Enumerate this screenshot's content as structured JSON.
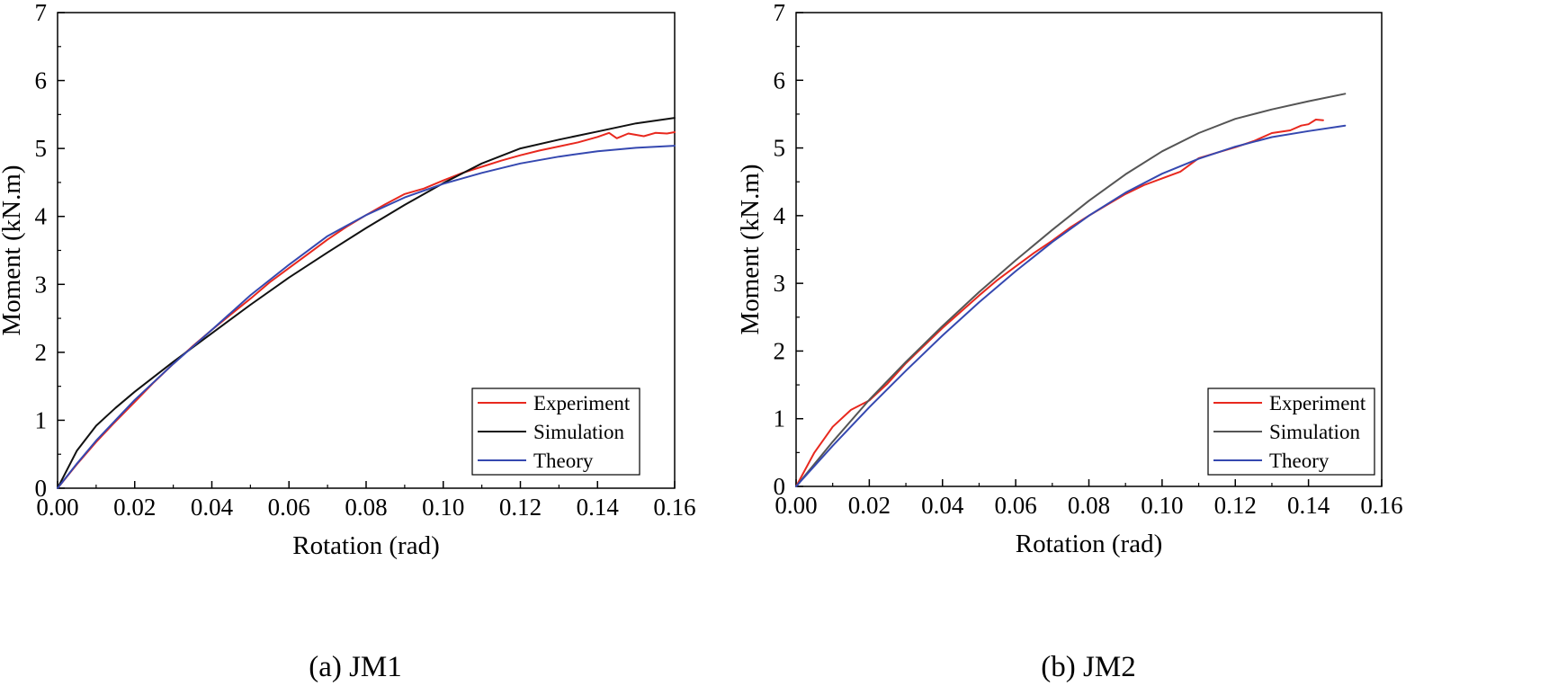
{
  "chart_data": [
    {
      "type": "line",
      "caption": "(a) JM1",
      "xlabel": "Rotation (rad)",
      "ylabel": "Moment (kN.m)",
      "xlim": [
        0,
        0.16
      ],
      "ylim": [
        0,
        7
      ],
      "xticks": [
        "0.00",
        "0.02",
        "0.04",
        "0.06",
        "0.08",
        "0.10",
        "0.12",
        "0.14",
        "0.16"
      ],
      "yticks": [
        "0",
        "1",
        "2",
        "3",
        "4",
        "5",
        "6",
        "7"
      ],
      "legend_position": "bottom-right",
      "series": [
        {
          "name": "Experiment",
          "color": "#e8281e",
          "x": [
            0,
            0.005,
            0.01,
            0.015,
            0.02,
            0.025,
            0.03,
            0.035,
            0.04,
            0.045,
            0.05,
            0.055,
            0.06,
            0.065,
            0.07,
            0.075,
            0.08,
            0.085,
            0.09,
            0.095,
            0.1,
            0.105,
            0.11,
            0.115,
            0.12,
            0.125,
            0.13,
            0.135,
            0.14,
            0.143,
            0.145,
            0.148,
            0.152,
            0.155,
            0.158,
            0.16
          ],
          "y": [
            0,
            0.35,
            0.68,
            0.98,
            1.27,
            1.56,
            1.83,
            2.09,
            2.33,
            2.56,
            2.79,
            3.03,
            3.24,
            3.45,
            3.66,
            3.85,
            4.02,
            4.18,
            4.33,
            4.41,
            4.53,
            4.64,
            4.73,
            4.82,
            4.9,
            4.97,
            5.03,
            5.09,
            5.17,
            5.23,
            5.15,
            5.22,
            5.18,
            5.23,
            5.22,
            5.24
          ]
        },
        {
          "name": "Simulation",
          "color": "#111111",
          "x": [
            0,
            0.005,
            0.01,
            0.015,
            0.02,
            0.03,
            0.04,
            0.05,
            0.06,
            0.07,
            0.08,
            0.09,
            0.1,
            0.11,
            0.12,
            0.13,
            0.14,
            0.15,
            0.16
          ],
          "y": [
            0,
            0.55,
            0.92,
            1.18,
            1.42,
            1.86,
            2.28,
            2.7,
            3.1,
            3.47,
            3.83,
            4.17,
            4.49,
            4.78,
            5.0,
            5.13,
            5.25,
            5.37,
            5.45
          ]
        },
        {
          "name": "Theory",
          "color": "#3548b0",
          "x": [
            0,
            0.005,
            0.01,
            0.02,
            0.03,
            0.04,
            0.05,
            0.06,
            0.07,
            0.08,
            0.09,
            0.1,
            0.11,
            0.12,
            0.13,
            0.14,
            0.15,
            0.16
          ],
          "y": [
            0,
            0.36,
            0.7,
            1.3,
            1.83,
            2.33,
            2.84,
            3.29,
            3.71,
            4.02,
            4.28,
            4.48,
            4.64,
            4.78,
            4.88,
            4.96,
            5.01,
            5.04
          ]
        }
      ]
    },
    {
      "type": "line",
      "caption": "(b) JM2",
      "xlabel": "Rotation (rad)",
      "ylabel": "Moment (kN.m)",
      "xlim": [
        0,
        0.16
      ],
      "ylim": [
        0,
        7
      ],
      "xticks": [
        "0.00",
        "0.02",
        "0.04",
        "0.06",
        "0.08",
        "0.10",
        "0.12",
        "0.14",
        "0.16"
      ],
      "yticks": [
        "0",
        "1",
        "2",
        "3",
        "4",
        "5",
        "6",
        "7"
      ],
      "legend_position": "bottom-right",
      "series": [
        {
          "name": "Experiment",
          "color": "#e8281e",
          "x": [
            0,
            0.005,
            0.01,
            0.015,
            0.02,
            0.025,
            0.03,
            0.035,
            0.04,
            0.045,
            0.05,
            0.055,
            0.06,
            0.065,
            0.07,
            0.075,
            0.08,
            0.085,
            0.09,
            0.095,
            0.1,
            0.105,
            0.11,
            0.115,
            0.12,
            0.125,
            0.13,
            0.135,
            0.138,
            0.14,
            0.142,
            0.144
          ],
          "y": [
            0,
            0.5,
            0.88,
            1.13,
            1.27,
            1.52,
            1.82,
            2.08,
            2.34,
            2.58,
            2.82,
            3.05,
            3.25,
            3.45,
            3.63,
            3.83,
            4.0,
            4.16,
            4.32,
            4.45,
            4.55,
            4.65,
            4.85,
            4.93,
            5.01,
            5.1,
            5.22,
            5.26,
            5.33,
            5.35,
            5.42,
            5.41
          ]
        },
        {
          "name": "Simulation",
          "color": "#555555",
          "x": [
            0,
            0.01,
            0.02,
            0.03,
            0.04,
            0.05,
            0.06,
            0.07,
            0.08,
            0.09,
            0.1,
            0.11,
            0.12,
            0.13,
            0.14,
            0.15
          ],
          "y": [
            0,
            0.66,
            1.28,
            1.84,
            2.37,
            2.87,
            3.34,
            3.79,
            4.22,
            4.61,
            4.95,
            5.22,
            5.43,
            5.57,
            5.69,
            5.8
          ]
        },
        {
          "name": "Theory",
          "color": "#3548b0",
          "x": [
            0,
            0.01,
            0.02,
            0.03,
            0.04,
            0.05,
            0.06,
            0.07,
            0.08,
            0.09,
            0.1,
            0.11,
            0.12,
            0.13,
            0.14,
            0.15
          ],
          "y": [
            0,
            0.6,
            1.17,
            1.71,
            2.23,
            2.72,
            3.18,
            3.61,
            4.0,
            4.34,
            4.62,
            4.84,
            5.02,
            5.16,
            5.25,
            5.33
          ]
        }
      ]
    }
  ]
}
